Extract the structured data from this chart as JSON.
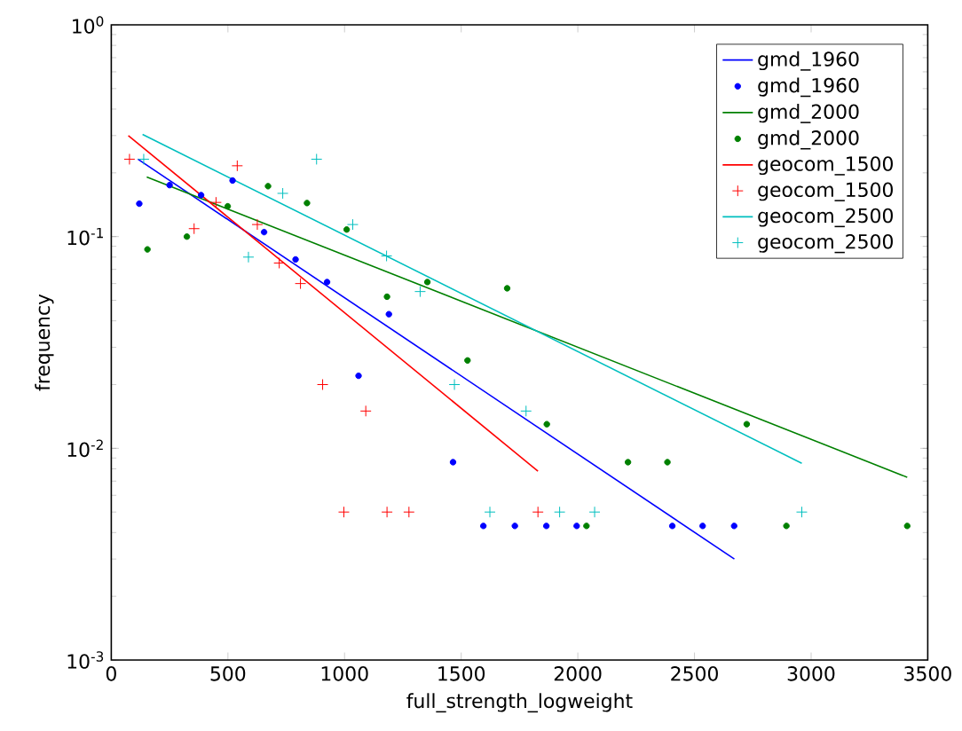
{
  "chart_data": {
    "type": "scatter",
    "xlabel": "full_strength_logweight",
    "ylabel": "frequency",
    "log": "y",
    "legend": "top right",
    "grid": false,
    "xlim": [
      0,
      3500
    ],
    "xticks": [
      0,
      500,
      1000,
      1500,
      2000,
      2500,
      3000,
      3500
    ],
    "ylim": [
      0.001,
      1
    ],
    "yticks": [
      {
        "value": 0.001,
        "label": "10$^{-3}$"
      },
      {
        "value": 0.01,
        "label": "10$^{-2}$"
      },
      {
        "value": 0.1,
        "label": "10$^{-1}$"
      },
      {
        "value": 1,
        "label": "10$^{0}$"
      }
    ],
    "series": [
      {
        "type": "line",
        "name": "gmd_1960",
        "color": "#0000ff",
        "x": [
          114,
          2671
        ],
        "values": [
          0.232,
          0.003
        ]
      },
      {
        "name": "gmd_1960",
        "color": "#0000ff",
        "marker": "circle",
        "x": [
          120,
          250,
          385,
          520,
          655,
          790,
          925,
          1060,
          1190,
          1465,
          1595,
          1730,
          1865,
          1995,
          2405,
          2535,
          2670
        ],
        "values": [
          0.143,
          0.175,
          0.157,
          0.184,
          0.105,
          0.078,
          0.061,
          0.022,
          0.043,
          0.0086,
          0.0043,
          0.0043,
          0.0043,
          0.0043,
          0.0043,
          0.0043,
          0.0043
        ]
      },
      {
        "type": "line",
        "name": "gmd_2000",
        "color": "#008000",
        "x": [
          152,
          3412
        ],
        "values": [
          0.191,
          0.0073
        ]
      },
      {
        "name": "gmd_2000",
        "color": "#008000",
        "marker": "circle",
        "x": [
          155,
          324,
          499,
          672,
          839,
          1009,
          1182,
          1355,
          1527,
          1697,
          1867,
          2037,
          2215,
          2384,
          2724,
          2894,
          3412
        ],
        "values": [
          0.087,
          0.1,
          0.139,
          0.173,
          0.144,
          0.108,
          0.052,
          0.061,
          0.026,
          0.057,
          0.013,
          0.0043,
          0.0086,
          0.0086,
          0.013,
          0.0043,
          0.0043
        ]
      },
      {
        "type": "line",
        "name": "geocom_1500",
        "color": "#ff0000",
        "x": [
          73,
          1829
        ],
        "values": [
          0.3,
          0.0078
        ]
      },
      {
        "name": "geocom_1500",
        "color": "#ff0000",
        "marker": "cross",
        "x": [
          78,
          355,
          449,
          540,
          626,
          720,
          811,
          906,
          997,
          1091,
          1182,
          1276,
          1829
        ],
        "values": [
          0.232,
          0.109,
          0.145,
          0.216,
          0.114,
          0.075,
          0.06,
          0.02,
          0.005,
          0.015,
          0.005,
          0.005,
          0.005
        ]
      },
      {
        "type": "line",
        "name": "geocom_2500",
        "color": "#00bfbf",
        "x": [
          134,
          2960
        ],
        "values": [
          0.304,
          0.0085
        ]
      },
      {
        "name": "geocom_2500",
        "color": "#00bfbf",
        "marker": "cross",
        "x": [
          139,
          588,
          735,
          880,
          1035,
          1180,
          1324,
          1471,
          1623,
          1778,
          1922,
          2072,
          2960
        ],
        "values": [
          0.232,
          0.08,
          0.16,
          0.232,
          0.114,
          0.081,
          0.055,
          0.02,
          0.005,
          0.015,
          0.005,
          0.005,
          0.005
        ]
      }
    ]
  }
}
